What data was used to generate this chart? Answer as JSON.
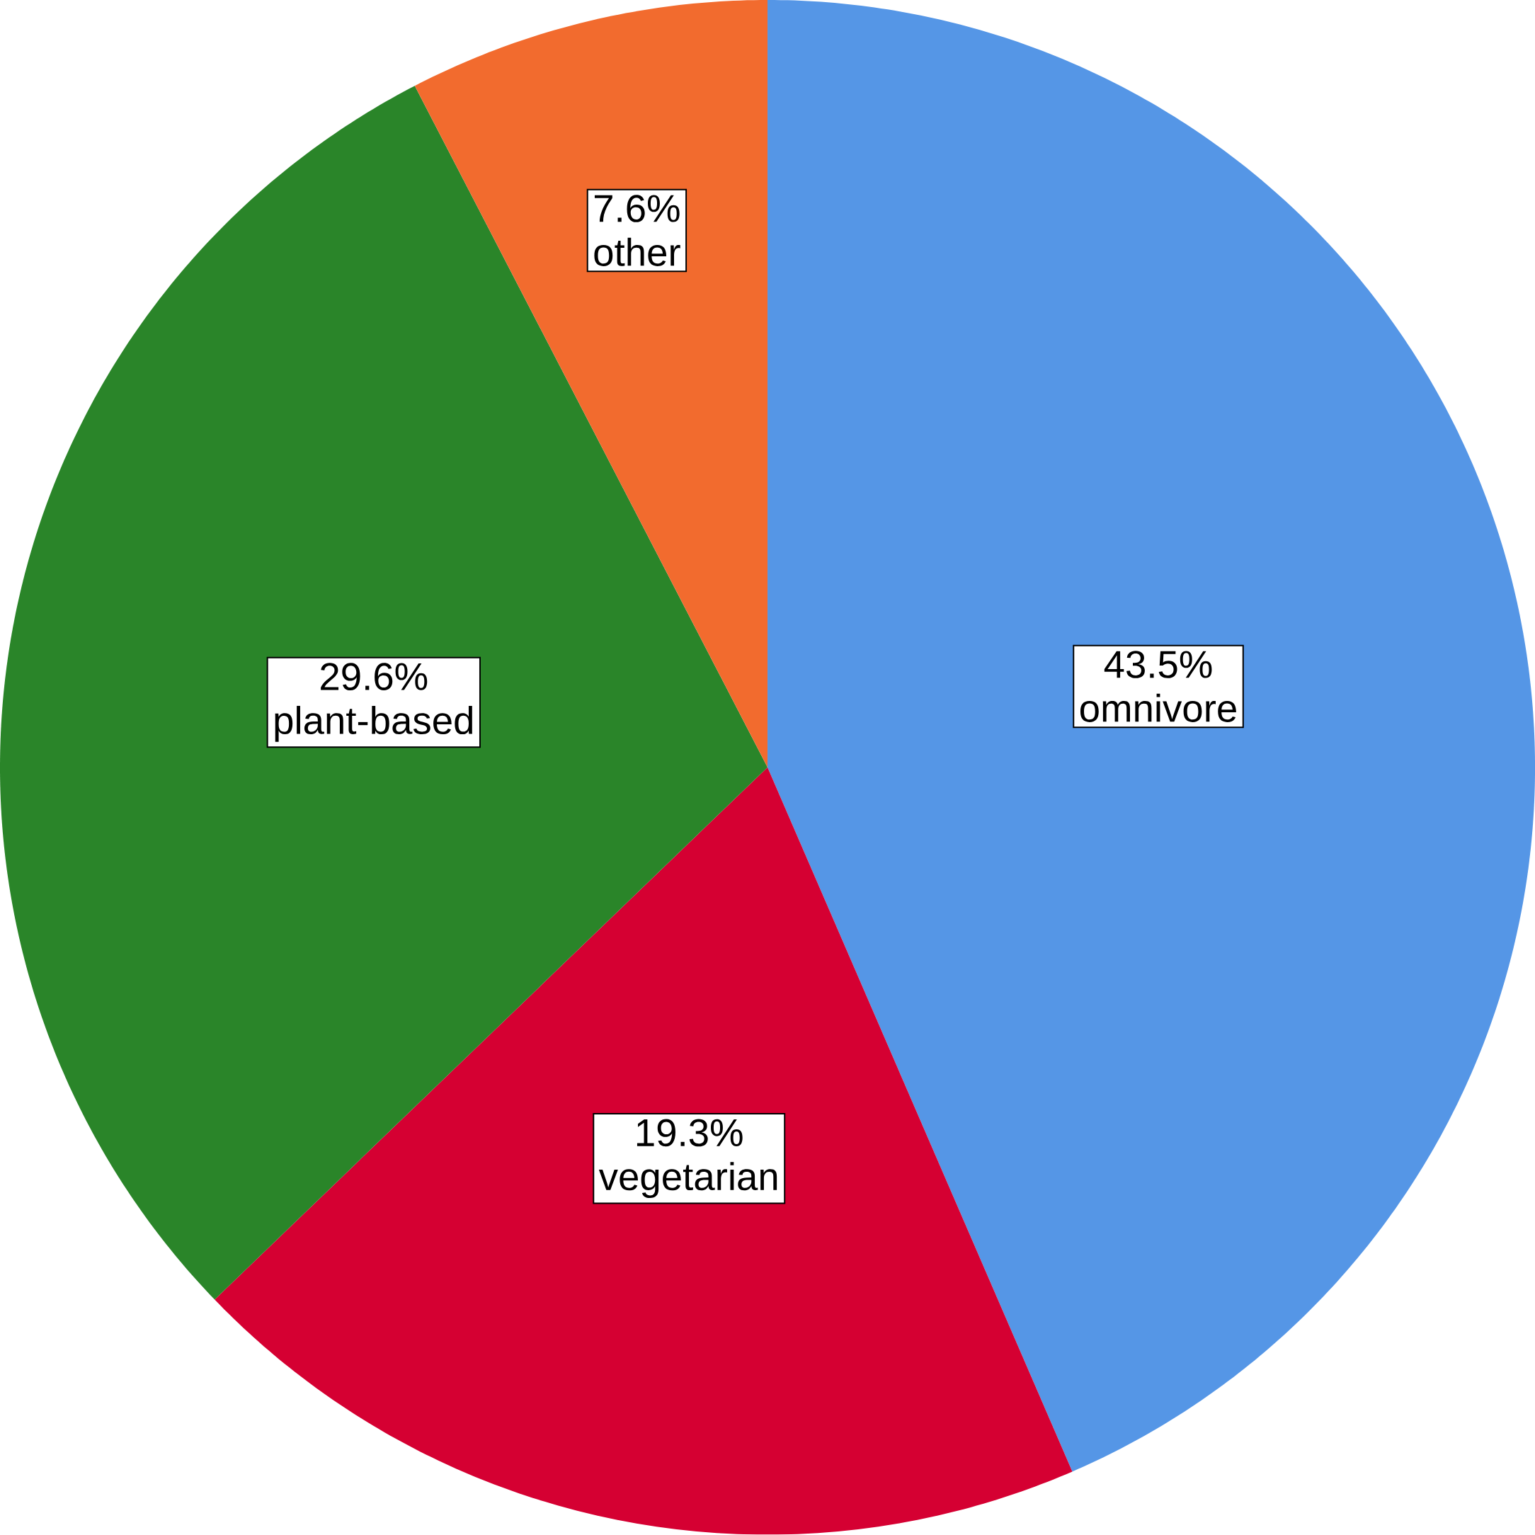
{
  "chart_data": {
    "type": "pie",
    "categories": [
      "omnivore",
      "vegetarian",
      "plant-based",
      "other"
    ],
    "values": [
      43.5,
      19.3,
      29.6,
      7.6
    ],
    "colors": [
      "#5596e6",
      "#d50032",
      "#2a8529",
      "#f26b2e"
    ],
    "value_labels": [
      "43.5%",
      "19.3%",
      "29.6%",
      "7.6%"
    ]
  }
}
